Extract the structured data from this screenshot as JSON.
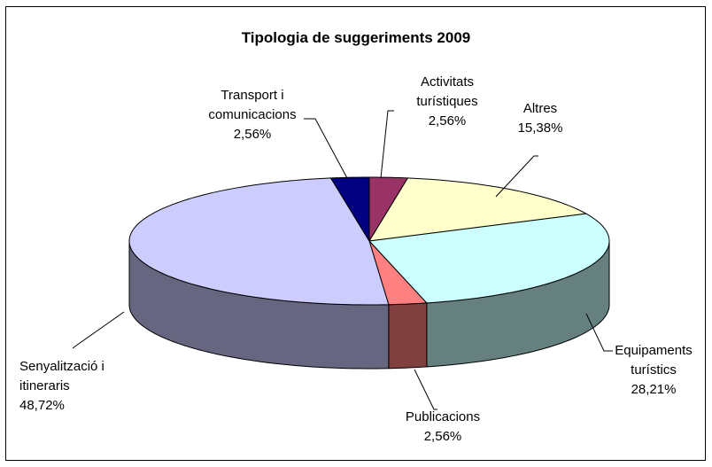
{
  "chart_data": {
    "type": "pie3d",
    "title": "Tipologia de suggeriments 2009",
    "categories": [
      "Activitats turístiques",
      "Altres",
      "Equipaments turístics",
      "Publicacions",
      "Senyalització i itineraris",
      "Transport i comunicacions"
    ],
    "values": [
      2.56,
      15.38,
      28.21,
      2.56,
      48.72,
      2.56
    ],
    "value_labels": [
      "2,56%",
      "15,38%",
      "28,21%",
      "2,56%",
      "48,72%",
      "2,56%"
    ],
    "colors": [
      "#993366",
      "#ffffcc",
      "#ccffff",
      "#ff8080",
      "#ccccff",
      "#000080"
    ]
  }
}
